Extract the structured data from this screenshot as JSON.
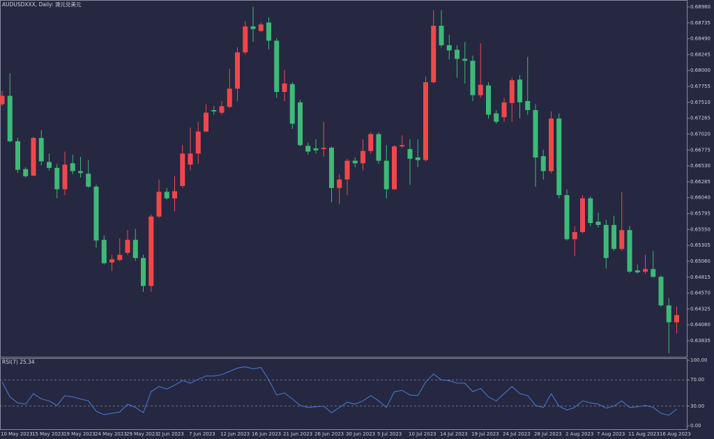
{
  "chart_data": [
    {
      "type": "candlestick",
      "title": "AUDUSDXXX, Daily: 澳元兑美元",
      "up_color": "#f0474a",
      "down_color": "#3dba77",
      "categories": [
        "10 May 2023",
        null,
        null,
        null,
        "15 May 2023",
        null,
        null,
        null,
        "19 May 2023",
        null,
        null,
        null,
        "24 May 2023",
        null,
        null,
        null,
        "29 May 2023",
        null,
        null,
        null,
        "2 Jun 2023",
        null,
        null,
        null,
        "7 Jun 2023",
        null,
        null,
        null,
        "12 Jun 2023",
        null,
        null,
        null,
        "16 Jun 2023",
        null,
        null,
        null,
        "21 Jun 2023",
        null,
        null,
        null,
        "26 Jun 2023",
        null,
        null,
        null,
        "30 Jun 2023",
        null,
        null,
        null,
        "5 Jul 2023",
        null,
        null,
        null,
        "10 Jul 2023",
        null,
        null,
        null,
        "14 Jul 2023",
        null,
        null,
        null,
        "19 Jul 2023",
        null,
        null,
        null,
        "24 Jul 2023",
        null,
        null,
        null,
        "28 Jul 2023",
        null,
        null,
        null,
        "2 Aug 2023",
        null,
        null,
        null,
        "7 Aug 2023",
        null,
        null,
        null,
        "11 Aug 2023",
        null,
        null,
        null,
        "16 Aug 2023",
        null,
        null
      ],
      "open": [
        0.6748,
        0.6761,
        0.6691,
        0.6648,
        0.6638,
        0.6696,
        0.6659,
        0.665,
        0.6617,
        0.6657,
        0.6645,
        0.6641,
        0.6621,
        0.6539,
        0.6504,
        0.6508,
        0.6519,
        0.6539,
        0.6511,
        0.6468,
        0.6575,
        0.6613,
        0.6603,
        0.6622,
        0.6655,
        0.6672,
        0.6706,
        0.6739,
        0.6735,
        0.6744,
        0.6772,
        0.6828,
        0.6868,
        0.6861,
        0.6874,
        0.6846,
        0.6767,
        0.6779,
        0.6751,
        0.6684,
        0.668,
        0.6679,
        0.6681,
        0.6619,
        0.6632,
        0.6661,
        0.6657,
        0.6676,
        0.6702,
        0.6661,
        0.6617,
        0.6683,
        0.6679,
        0.6666,
        0.6662,
        0.6782,
        0.6869,
        0.6839,
        0.6832,
        0.6818,
        0.6815,
        0.6762,
        0.6777,
        0.6734,
        0.6728,
        0.675,
        0.6786,
        0.6753,
        0.6739,
        0.6668,
        0.6645,
        0.6726,
        0.6608,
        0.654,
        0.6551,
        0.6603,
        0.6567,
        0.6562,
        0.6562,
        0.6525,
        0.6554,
        0.6492,
        0.649,
        0.6494,
        0.6482,
        0.6438,
        0.6412
      ],
      "high": [
        0.6769,
        0.6796,
        0.6696,
        0.6651,
        0.6698,
        0.6708,
        0.6672,
        0.6656,
        0.6675,
        0.667,
        0.6667,
        0.6662,
        0.6624,
        0.6546,
        0.6516,
        0.6541,
        0.6554,
        0.6556,
        0.6516,
        0.6578,
        0.6632,
        0.6619,
        0.6637,
        0.6685,
        0.6712,
        0.6721,
        0.6748,
        0.6745,
        0.6753,
        0.6803,
        0.6836,
        0.6876,
        0.6898,
        0.6874,
        0.6882,
        0.685,
        0.6801,
        0.6782,
        0.6755,
        0.6689,
        0.6694,
        0.6721,
        0.6683,
        0.664,
        0.6664,
        0.6666,
        0.6694,
        0.6705,
        0.6705,
        0.6685,
        0.6685,
        0.67,
        0.6694,
        0.6694,
        0.6791,
        0.6893,
        0.6893,
        0.6855,
        0.6839,
        0.6844,
        0.6823,
        0.6842,
        0.6782,
        0.6739,
        0.6758,
        0.6789,
        0.6793,
        0.6821,
        0.6748,
        0.6678,
        0.6737,
        0.6734,
        0.6617,
        0.656,
        0.6608,
        0.6606,
        0.6581,
        0.657,
        0.6576,
        0.6613,
        0.656,
        0.6501,
        0.6516,
        0.6522,
        0.6484,
        0.6449,
        0.6436
      ],
      "low": [
        0.6745,
        0.6689,
        0.6642,
        0.6635,
        0.6637,
        0.6654,
        0.6646,
        0.6603,
        0.6608,
        0.664,
        0.6635,
        0.6619,
        0.6527,
        0.6501,
        0.6491,
        0.6506,
        0.6516,
        0.6507,
        0.6459,
        0.6459,
        0.6573,
        0.6601,
        0.6583,
        0.6619,
        0.6646,
        0.6656,
        0.6705,
        0.6732,
        0.6732,
        0.6742,
        0.6753,
        0.6825,
        0.6844,
        0.686,
        0.6833,
        0.6758,
        0.6753,
        0.671,
        0.6683,
        0.667,
        0.6672,
        0.6667,
        0.6597,
        0.6594,
        0.6608,
        0.6651,
        0.6646,
        0.6672,
        0.6656,
        0.6603,
        0.6616,
        0.6681,
        0.6624,
        0.6651,
        0.666,
        0.678,
        0.6836,
        0.6817,
        0.6789,
        0.678,
        0.6753,
        0.6758,
        0.6726,
        0.6718,
        0.6721,
        0.6721,
        0.6726,
        0.6732,
        0.6621,
        0.6632,
        0.6642,
        0.6603,
        0.6538,
        0.6514,
        0.6549,
        0.656,
        0.6558,
        0.6495,
        0.6522,
        0.6522,
        0.6488,
        0.6487,
        0.6487,
        0.6481,
        0.6436,
        0.6364,
        0.6395
      ],
      "close": [
        0.6761,
        0.6691,
        0.6647,
        0.6637,
        0.6696,
        0.666,
        0.665,
        0.6617,
        0.6655,
        0.6645,
        0.6642,
        0.6621,
        0.6538,
        0.6503,
        0.6509,
        0.6516,
        0.6539,
        0.6511,
        0.6468,
        0.6575,
        0.6613,
        0.6603,
        0.6614,
        0.6672,
        0.6672,
        0.6706,
        0.6735,
        0.6737,
        0.6745,
        0.6772,
        0.6828,
        0.6868,
        0.6864,
        0.6871,
        0.6846,
        0.6767,
        0.678,
        0.6718,
        0.6685,
        0.6675,
        0.6677,
        0.6681,
        0.6619,
        0.6632,
        0.6661,
        0.6657,
        0.6676,
        0.6702,
        0.6661,
        0.6617,
        0.6683,
        0.6685,
        0.6664,
        0.6662,
        0.6782,
        0.6869,
        0.6839,
        0.6831,
        0.6818,
        0.6815,
        0.6762,
        0.6778,
        0.6732,
        0.6721,
        0.6751,
        0.6785,
        0.6751,
        0.6739,
        0.6666,
        0.6645,
        0.6726,
        0.6608,
        0.654,
        0.6551,
        0.6603,
        0.6565,
        0.6562,
        0.6511,
        0.6525,
        0.6554,
        0.649,
        0.6489,
        0.6494,
        0.6482,
        0.6438,
        0.6412,
        0.6423
      ],
      "ylim": [
        0.63588,
        0.69087
      ],
      "yticks": [
        {
          "value": 0.6898,
          "label": "0.68980"
        },
        0.68735,
        {
          "value": 0.6849,
          "label": "0.68490"
        },
        0.68245,
        {
          "value": 0.68,
          "label": "0.68000"
        },
        0.67755,
        {
          "value": 0.6751,
          "label": "0.67510"
        },
        0.67265,
        {
          "value": 0.6702,
          "label": "0.67020"
        },
        0.66775,
        {
          "value": 0.6653,
          "label": "0.66530"
        },
        0.66285,
        {
          "value": 0.6604,
          "label": "0.66040"
        },
        0.65795,
        {
          "value": 0.6555,
          "label": "0.65550"
        },
        0.65305,
        {
          "value": 0.6506,
          "label": "0.65060"
        },
        0.64815,
        {
          "value": 0.6457,
          "label": "0.64570"
        },
        0.64325,
        {
          "value": 0.6408,
          "label": "0.64080"
        },
        0.63835
      ]
    },
    {
      "type": "line",
      "title": "RSI(7) 25.34",
      "color": "#3f7fe0",
      "values": [
        67,
        44,
        35,
        33,
        49,
        41,
        38,
        31,
        46,
        44,
        41,
        38,
        22,
        17,
        19,
        21,
        33,
        28,
        20,
        52,
        60,
        56,
        62,
        69,
        65,
        71,
        76,
        76,
        78,
        83,
        88,
        90,
        87,
        89,
        70,
        47,
        50,
        41,
        31,
        28,
        29,
        30,
        20,
        28,
        36,
        33,
        38,
        46,
        38,
        28,
        52,
        54,
        47,
        46,
        67,
        79,
        70,
        69,
        65,
        65,
        52,
        57,
        44,
        38,
        49,
        60,
        49,
        46,
        31,
        28,
        49,
        30,
        24,
        28,
        38,
        35,
        33,
        27,
        30,
        38,
        28,
        29,
        31,
        28,
        19,
        16,
        25.34
      ],
      "ylim": [
        -5.3,
        103.2
      ],
      "yticks": [
        {
          "value": 100,
          "label": "100.00"
        },
        {
          "value": 70,
          "label": "70.00"
        },
        {
          "value": 30,
          "label": "30.00"
        },
        {
          "value": 0,
          "label": "0.00"
        }
      ],
      "levels": [
        70,
        30
      ]
    }
  ]
}
